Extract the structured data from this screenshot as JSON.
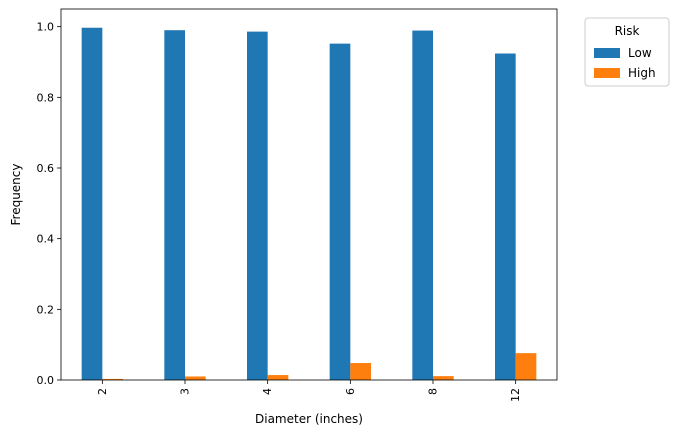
{
  "chart_data": {
    "type": "bar",
    "title": "",
    "xlabel": "Diameter (inches)",
    "ylabel": "Frequency",
    "categories": [
      "2",
      "3",
      "4",
      "6",
      "8",
      "12"
    ],
    "series": [
      {
        "name": "Low",
        "color": "#1f77b4",
        "values": [
          0.997,
          0.99,
          0.986,
          0.952,
          0.989,
          0.924
        ]
      },
      {
        "name": "High",
        "color": "#ff7f0e",
        "values": [
          0.003,
          0.01,
          0.014,
          0.048,
          0.011,
          0.076
        ]
      }
    ],
    "ylim": [
      0,
      1.05
    ],
    "yticks": [
      "0.0",
      "0.2",
      "0.4",
      "0.6",
      "0.8",
      "1.0"
    ],
    "grid": false,
    "legend": {
      "title": "Risk",
      "placement": "outside-top-right"
    }
  }
}
